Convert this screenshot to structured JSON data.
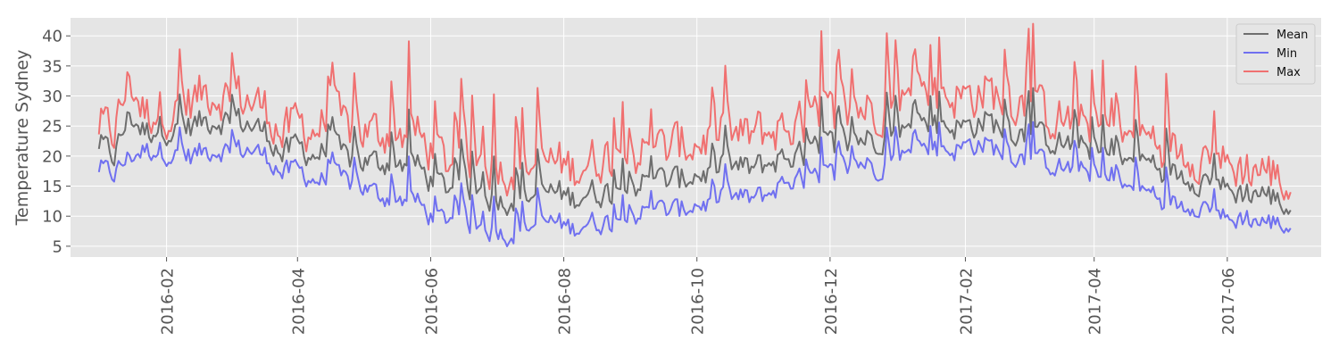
{
  "chart_data": {
    "type": "line",
    "title": "",
    "xlabel": "",
    "ylabel": "Temperature Sydney",
    "x_range": [
      "2016-01-01",
      "2017-06-30"
    ],
    "xlim": [
      "2015-12-19",
      "2017-07-14"
    ],
    "ylim": [
      3.2,
      43.0
    ],
    "yticks": [
      5,
      10,
      15,
      20,
      25,
      30,
      35,
      40
    ],
    "xticks": [
      "2016-02",
      "2016-04",
      "2016-06",
      "2016-08",
      "2016-10",
      "2016-12",
      "2017-02",
      "2017-04",
      "2017-06"
    ],
    "grid": true,
    "legend_position": "top-right",
    "series": [
      {
        "name": "Mean",
        "color": "#6e6e6e",
        "points": [
          [
            "2016-01-01",
            22
          ],
          [
            "2016-01-08",
            20
          ],
          [
            "2016-01-15",
            27
          ],
          [
            "2016-01-22",
            24
          ],
          [
            "2016-01-29",
            25
          ],
          [
            "2016-02-05",
            24
          ],
          [
            "2016-02-12",
            25
          ],
          [
            "2016-02-19",
            26
          ],
          [
            "2016-02-26",
            26
          ],
          [
            "2016-03-04",
            26
          ],
          [
            "2016-03-11",
            25
          ],
          [
            "2016-03-18",
            24
          ],
          [
            "2016-03-25",
            20
          ],
          [
            "2016-04-01",
            22
          ],
          [
            "2016-04-08",
            20
          ],
          [
            "2016-04-15",
            21
          ],
          [
            "2016-04-22",
            20
          ],
          [
            "2016-04-29",
            19
          ],
          [
            "2016-05-06",
            19
          ],
          [
            "2016-05-13",
            19
          ],
          [
            "2016-05-20",
            19
          ],
          [
            "2016-05-27",
            18
          ],
          [
            "2016-06-03",
            15
          ],
          [
            "2016-06-10",
            15
          ],
          [
            "2016-06-17",
            15
          ],
          [
            "2016-06-24",
            14
          ],
          [
            "2016-07-01",
            12
          ],
          [
            "2016-07-08",
            13
          ],
          [
            "2016-07-15",
            13
          ],
          [
            "2016-07-22",
            14
          ],
          [
            "2016-07-29",
            14
          ],
          [
            "2016-08-05",
            13
          ],
          [
            "2016-08-12",
            14
          ],
          [
            "2016-08-19",
            14
          ],
          [
            "2016-08-26",
            14
          ],
          [
            "2016-09-02",
            15
          ],
          [
            "2016-09-09",
            16
          ],
          [
            "2016-09-16",
            16
          ],
          [
            "2016-09-23",
            16
          ],
          [
            "2016-09-30",
            17
          ],
          [
            "2016-10-07",
            17
          ],
          [
            "2016-10-14",
            18
          ],
          [
            "2016-10-21",
            18
          ],
          [
            "2016-10-28",
            18
          ],
          [
            "2016-11-04",
            19
          ],
          [
            "2016-11-11",
            20
          ],
          [
            "2016-11-18",
            20
          ],
          [
            "2016-11-25",
            21
          ],
          [
            "2016-12-02",
            22
          ],
          [
            "2016-12-09",
            22
          ],
          [
            "2016-12-16",
            23
          ],
          [
            "2016-12-23",
            23
          ],
          [
            "2016-12-30",
            24
          ],
          [
            "2017-01-06",
            24
          ],
          [
            "2017-01-13",
            25
          ],
          [
            "2017-01-20",
            25
          ],
          [
            "2017-01-27",
            25
          ],
          [
            "2017-02-03",
            25
          ],
          [
            "2017-02-10",
            26
          ],
          [
            "2017-02-17",
            25
          ],
          [
            "2017-02-24",
            24
          ],
          [
            "2017-03-03",
            23
          ],
          [
            "2017-03-10",
            23
          ],
          [
            "2017-03-17",
            22
          ],
          [
            "2017-03-24",
            22
          ],
          [
            "2017-03-31",
            21
          ],
          [
            "2017-04-07",
            19
          ],
          [
            "2017-04-14",
            19
          ],
          [
            "2017-04-21",
            19
          ],
          [
            "2017-04-28",
            19
          ],
          [
            "2017-05-05",
            17
          ],
          [
            "2017-05-12",
            17
          ],
          [
            "2017-05-19",
            16
          ],
          [
            "2017-05-26",
            16
          ],
          [
            "2017-06-02",
            14
          ],
          [
            "2017-06-09",
            14
          ],
          [
            "2017-06-16",
            14
          ],
          [
            "2017-06-23",
            13
          ],
          [
            "2017-06-30",
            11
          ]
        ]
      },
      {
        "name": "Min",
        "color": "#7070f0",
        "points": [
          [
            "2016-01-01",
            18
          ],
          [
            "2016-01-08",
            17
          ],
          [
            "2016-01-15",
            20
          ],
          [
            "2016-01-22",
            21
          ],
          [
            "2016-01-29",
            21
          ],
          [
            "2016-02-05",
            20
          ],
          [
            "2016-02-12",
            20
          ],
          [
            "2016-02-19",
            21
          ],
          [
            "2016-02-26",
            21
          ],
          [
            "2016-03-04",
            21
          ],
          [
            "2016-03-11",
            21
          ],
          [
            "2016-03-18",
            20
          ],
          [
            "2016-03-25",
            17
          ],
          [
            "2016-04-01",
            18
          ],
          [
            "2016-04-08",
            16
          ],
          [
            "2016-04-15",
            16
          ],
          [
            "2016-04-22",
            16
          ],
          [
            "2016-04-29",
            15
          ],
          [
            "2016-05-06",
            14
          ],
          [
            "2016-05-13",
            13
          ],
          [
            "2016-05-20",
            13
          ],
          [
            "2016-05-27",
            12
          ],
          [
            "2016-06-03",
            9
          ],
          [
            "2016-06-10",
            10
          ],
          [
            "2016-06-17",
            9
          ],
          [
            "2016-06-24",
            8
          ],
          [
            "2016-07-01",
            7
          ],
          [
            "2016-07-08",
            7
          ],
          [
            "2016-07-15",
            8
          ],
          [
            "2016-07-22",
            9
          ],
          [
            "2016-07-29",
            9
          ],
          [
            "2016-08-05",
            8
          ],
          [
            "2016-08-12",
            9
          ],
          [
            "2016-08-19",
            9
          ],
          [
            "2016-08-26",
            9
          ],
          [
            "2016-09-02",
            10
          ],
          [
            "2016-09-09",
            11
          ],
          [
            "2016-09-16",
            11
          ],
          [
            "2016-09-23",
            11
          ],
          [
            "2016-09-30",
            12
          ],
          [
            "2016-10-07",
            12
          ],
          [
            "2016-10-14",
            13
          ],
          [
            "2016-10-21",
            13
          ],
          [
            "2016-10-28",
            13
          ],
          [
            "2016-11-04",
            14
          ],
          [
            "2016-11-11",
            16
          ],
          [
            "2016-11-18",
            16
          ],
          [
            "2016-11-25",
            16
          ],
          [
            "2016-12-02",
            17
          ],
          [
            "2016-12-09",
            18
          ],
          [
            "2016-12-16",
            19
          ],
          [
            "2016-12-23",
            18
          ],
          [
            "2016-12-30",
            20
          ],
          [
            "2017-01-06",
            20
          ],
          [
            "2017-01-13",
            21
          ],
          [
            "2017-01-20",
            21
          ],
          [
            "2017-01-27",
            21
          ],
          [
            "2017-02-03",
            22
          ],
          [
            "2017-02-10",
            22
          ],
          [
            "2017-02-17",
            21
          ],
          [
            "2017-02-24",
            20
          ],
          [
            "2017-03-03",
            19
          ],
          [
            "2017-03-10",
            19
          ],
          [
            "2017-03-17",
            18
          ],
          [
            "2017-03-24",
            18
          ],
          [
            "2017-03-31",
            17
          ],
          [
            "2017-04-07",
            15
          ],
          [
            "2017-04-14",
            15
          ],
          [
            "2017-04-21",
            14
          ],
          [
            "2017-04-28",
            14
          ],
          [
            "2017-05-05",
            12
          ],
          [
            "2017-05-12",
            12
          ],
          [
            "2017-05-19",
            12
          ],
          [
            "2017-05-26",
            11
          ],
          [
            "2017-06-02",
            9
          ],
          [
            "2017-06-09",
            10
          ],
          [
            "2017-06-16",
            9
          ],
          [
            "2017-06-23",
            9
          ],
          [
            "2017-06-30",
            8
          ]
        ]
      },
      {
        "name": "Max",
        "color": "#f07070",
        "points": [
          [
            "2016-01-01",
            25
          ],
          [
            "2016-01-08",
            24
          ],
          [
            "2016-01-15",
            33
          ],
          [
            "2016-01-22",
            27
          ],
          [
            "2016-01-29",
            28
          ],
          [
            "2016-02-05",
            27
          ],
          [
            "2016-02-12",
            29
          ],
          [
            "2016-02-19",
            31
          ],
          [
            "2016-02-26",
            30
          ],
          [
            "2016-03-04",
            30
          ],
          [
            "2016-03-11",
            29
          ],
          [
            "2016-03-18",
            28
          ],
          [
            "2016-03-25",
            23
          ],
          [
            "2016-04-01",
            26
          ],
          [
            "2016-04-08",
            24
          ],
          [
            "2016-04-15",
            26
          ],
          [
            "2016-04-22",
            25
          ],
          [
            "2016-04-29",
            24
          ],
          [
            "2016-05-06",
            24
          ],
          [
            "2016-05-13",
            24
          ],
          [
            "2016-05-20",
            24
          ],
          [
            "2016-05-27",
            23
          ],
          [
            "2016-06-03",
            20
          ],
          [
            "2016-06-10",
            19
          ],
          [
            "2016-06-17",
            20
          ],
          [
            "2016-06-24",
            19
          ],
          [
            "2016-07-01",
            17
          ],
          [
            "2016-07-08",
            18
          ],
          [
            "2016-07-15",
            18
          ],
          [
            "2016-07-22",
            19
          ],
          [
            "2016-07-29",
            19
          ],
          [
            "2016-08-05",
            18
          ],
          [
            "2016-08-12",
            19
          ],
          [
            "2016-08-19",
            20
          ],
          [
            "2016-08-26",
            20
          ],
          [
            "2016-09-02",
            20
          ],
          [
            "2016-09-09",
            21
          ],
          [
            "2016-09-16",
            21
          ],
          [
            "2016-09-23",
            22
          ],
          [
            "2016-09-30",
            22
          ],
          [
            "2016-10-07",
            23
          ],
          [
            "2016-10-14",
            23
          ],
          [
            "2016-10-21",
            23
          ],
          [
            "2016-10-28",
            24
          ],
          [
            "2016-11-04",
            24
          ],
          [
            "2016-11-11",
            25
          ],
          [
            "2016-11-18",
            25
          ],
          [
            "2016-11-25",
            26
          ],
          [
            "2016-12-02",
            27
          ],
          [
            "2016-12-09",
            27
          ],
          [
            "2016-12-16",
            28
          ],
          [
            "2016-12-23",
            28
          ],
          [
            "2016-12-30",
            29
          ],
          [
            "2017-01-06",
            29
          ],
          [
            "2017-01-13",
            30
          ],
          [
            "2017-01-20",
            30
          ],
          [
            "2017-01-27",
            30
          ],
          [
            "2017-02-03",
            30
          ],
          [
            "2017-02-10",
            31
          ],
          [
            "2017-02-17",
            30
          ],
          [
            "2017-02-24",
            29
          ],
          [
            "2017-03-03",
            28
          ],
          [
            "2017-03-10",
            27
          ],
          [
            "2017-03-17",
            26
          ],
          [
            "2017-03-24",
            26
          ],
          [
            "2017-03-31",
            25
          ],
          [
            "2017-04-07",
            23
          ],
          [
            "2017-04-14",
            23
          ],
          [
            "2017-04-21",
            23
          ],
          [
            "2017-04-28",
            23
          ],
          [
            "2017-05-05",
            21
          ],
          [
            "2017-05-12",
            21
          ],
          [
            "2017-05-19",
            20
          ],
          [
            "2017-05-26",
            20
          ],
          [
            "2017-06-02",
            18
          ],
          [
            "2017-06-09",
            18
          ],
          [
            "2017-06-16",
            18
          ],
          [
            "2017-06-23",
            17
          ],
          [
            "2017-06-30",
            14
          ]
        ]
      }
    ]
  }
}
